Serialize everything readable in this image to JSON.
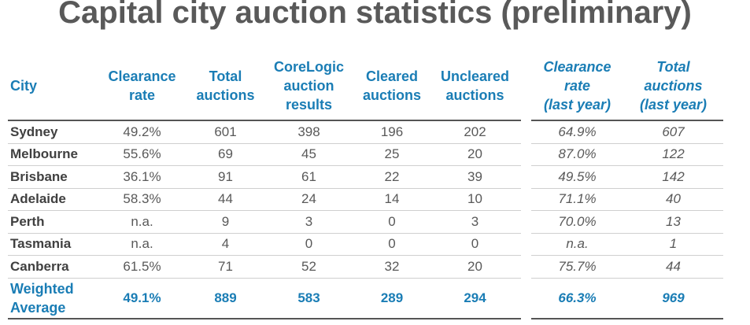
{
  "title": "Capital city auction statistics (preliminary)",
  "headers": {
    "city": "City",
    "clearance_rate": [
      "Clearance",
      "rate"
    ],
    "total_auctions": [
      "Total",
      "auctions"
    ],
    "corelogic": [
      "CoreLogic",
      "auction",
      "results"
    ],
    "cleared": [
      "Cleared",
      "auctions"
    ],
    "uncleared": [
      "Uncleared",
      "auctions"
    ],
    "clearance_last_year": [
      "Clearance",
      "rate",
      "(last year)"
    ],
    "total_last_year": [
      "Total",
      "auctions",
      "(last year)"
    ]
  },
  "rows": [
    {
      "city": "Sydney",
      "clearance": "49.2%",
      "total": "601",
      "corelogic": "398",
      "cleared": "196",
      "uncleared": "202",
      "clearance_ly": "64.9%",
      "total_ly": "607"
    },
    {
      "city": "Melbourne",
      "clearance": "55.6%",
      "total": "69",
      "corelogic": "45",
      "cleared": "25",
      "uncleared": "20",
      "clearance_ly": "87.0%",
      "total_ly": "122"
    },
    {
      "city": "Brisbane",
      "clearance": "36.1%",
      "total": "91",
      "corelogic": "61",
      "cleared": "22",
      "uncleared": "39",
      "clearance_ly": "49.5%",
      "total_ly": "142"
    },
    {
      "city": "Adelaide",
      "clearance": "58.3%",
      "total": "44",
      "corelogic": "24",
      "cleared": "14",
      "uncleared": "10",
      "clearance_ly": "71.1%",
      "total_ly": "40"
    },
    {
      "city": "Perth",
      "clearance": "n.a.",
      "total": "9",
      "corelogic": "3",
      "cleared": "0",
      "uncleared": "3",
      "clearance_ly": "70.0%",
      "total_ly": "13"
    },
    {
      "city": "Tasmania",
      "clearance": "n.a.",
      "total": "4",
      "corelogic": "0",
      "cleared": "0",
      "uncleared": "0",
      "clearance_ly": "n.a.",
      "total_ly": "1"
    },
    {
      "city": "Canberra",
      "clearance": "61.5%",
      "total": "71",
      "corelogic": "52",
      "cleared": "32",
      "uncleared": "20",
      "clearance_ly": "75.7%",
      "total_ly": "44"
    }
  ],
  "weighted": {
    "label_line1": "Weighted",
    "label_line2": "Average",
    "clearance": "49.1%",
    "total": "889",
    "corelogic": "583",
    "cleared": "289",
    "uncleared": "294",
    "clearance_ly": "66.3%",
    "total_ly": "969"
  },
  "colors": {
    "title": "#595959",
    "header_blue": "#1a7db5",
    "body_text": "#595959",
    "city_text": "#404040",
    "rule": "#555555",
    "row_divider": "#cfcfcf"
  }
}
